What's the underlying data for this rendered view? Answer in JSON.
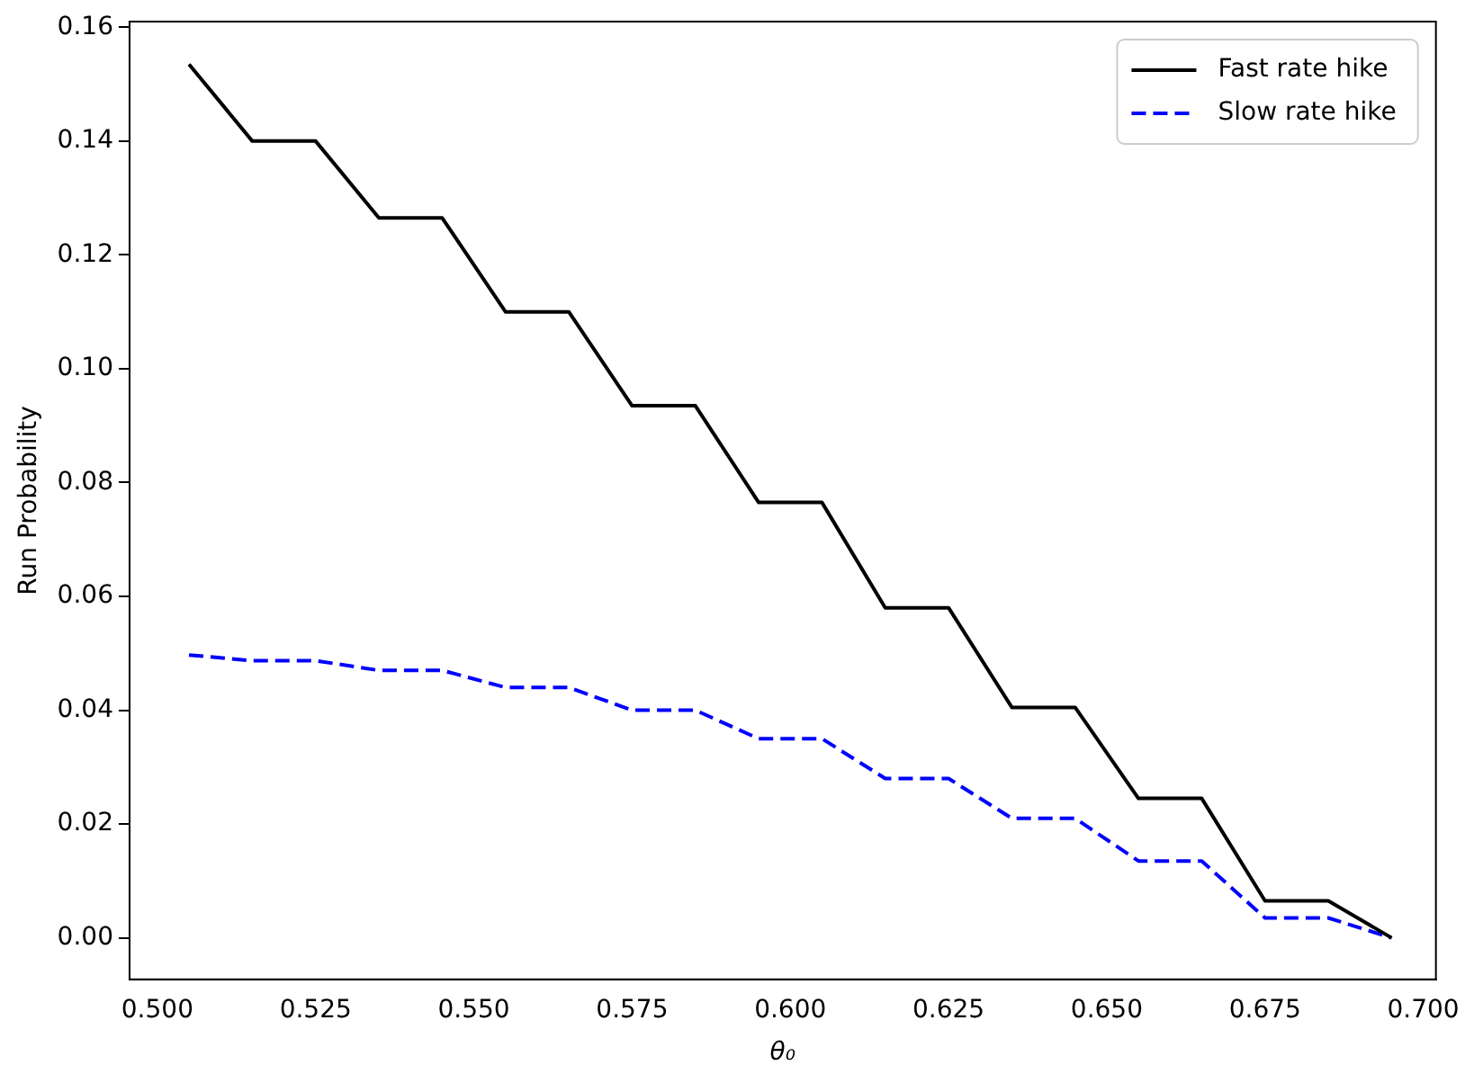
{
  "chart_data": {
    "type": "line",
    "xlabel": "θ₀",
    "ylabel": "Run Probability",
    "x": [
      0.505,
      0.515,
      0.525,
      0.535,
      0.545,
      0.555,
      0.565,
      0.575,
      0.585,
      0.595,
      0.605,
      0.615,
      0.625,
      0.635,
      0.645,
      0.655,
      0.665,
      0.675,
      0.685,
      0.695
    ],
    "series": [
      {
        "name": "Fast rate hike",
        "color": "#000000",
        "line_style": "solid",
        "values": [
          0.1535,
          0.14,
          0.14,
          0.1265,
          0.1265,
          0.11,
          0.11,
          0.0935,
          0.0935,
          0.0765,
          0.0765,
          0.058,
          0.058,
          0.0405,
          0.0405,
          0.0245,
          0.0245,
          0.0065,
          0.0065,
          0.0
        ]
      },
      {
        "name": "Slow rate hike",
        "color": "#0000ff",
        "line_style": "dashed",
        "values": [
          0.0497,
          0.0487,
          0.0487,
          0.047,
          0.047,
          0.044,
          0.044,
          0.04,
          0.04,
          0.035,
          0.035,
          0.028,
          0.028,
          0.021,
          0.021,
          0.0135,
          0.0135,
          0.0035,
          0.0035,
          0.0
        ]
      }
    ],
    "xlim": [
      0.4956,
      0.702
    ],
    "ylim": [
      -0.0073,
      0.161
    ],
    "xticks": [
      {
        "value": 0.5,
        "label": "0.500"
      },
      {
        "value": 0.525,
        "label": "0.525"
      },
      {
        "value": 0.55,
        "label": "0.550"
      },
      {
        "value": 0.575,
        "label": "0.575"
      },
      {
        "value": 0.6,
        "label": "0.600"
      },
      {
        "value": 0.625,
        "label": "0.625"
      },
      {
        "value": 0.65,
        "label": "0.650"
      },
      {
        "value": 0.675,
        "label": "0.675"
      },
      {
        "value": 0.7,
        "label": "0.700"
      }
    ],
    "yticks": [
      {
        "value": 0,
        "label": "0.00"
      },
      {
        "value": 0.02,
        "label": "0.02"
      },
      {
        "value": 0.04,
        "label": "0.04"
      },
      {
        "value": 0.06,
        "label": "0.06"
      },
      {
        "value": 0.08,
        "label": "0.08"
      },
      {
        "value": 0.1,
        "label": "0.10"
      },
      {
        "value": 0.12,
        "label": "0.12"
      },
      {
        "value": 0.14,
        "label": "0.14"
      },
      {
        "value": 0.16,
        "label": "0.16"
      }
    ],
    "grid": false,
    "legend": "top right",
    "marker": "none"
  }
}
